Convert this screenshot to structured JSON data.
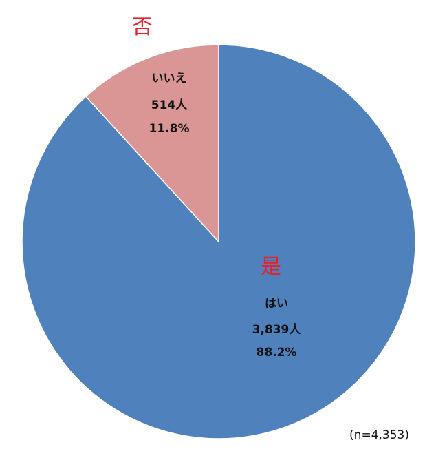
{
  "chart_data": {
    "type": "pie",
    "slices": [
      {
        "label": "はい",
        "count": "3,839人",
        "percent_text": "88.2%",
        "value": 88.2,
        "annotation": "是",
        "color": "#4f81bd"
      },
      {
        "label": "いいえ",
        "count": "514人",
        "percent_text": "11.8%",
        "value": 11.8,
        "annotation": "否",
        "color": "#d99694"
      }
    ],
    "note": "(n=4,353)",
    "start_angle_deg": 0,
    "direction": "clockwise"
  }
}
